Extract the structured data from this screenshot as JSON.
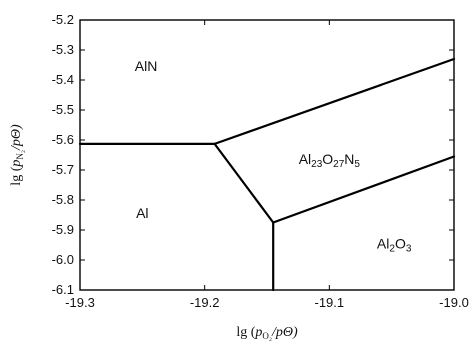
{
  "chart_data": {
    "type": "line",
    "title": "",
    "xlabel": {
      "prefix": "lg (",
      "p": "p",
      "sub": "O₂",
      "suffix": "/pΘ)"
    },
    "ylabel": {
      "prefix": "lg (",
      "p": "p",
      "sub": "N₂",
      "suffix": "/pΘ)"
    },
    "xlim": [
      -19.3,
      -19.0
    ],
    "ylim": [
      -6.1,
      -5.2
    ],
    "xticks": [
      -19.3,
      -19.2,
      -19.1,
      -19.0
    ],
    "xtick_labels": [
      "-19.3",
      "-19.2",
      "-19.1",
      "-19.0"
    ],
    "yticks": [
      -5.2,
      -5.3,
      -5.4,
      -5.5,
      -5.6,
      -5.7,
      -5.8,
      -5.9,
      -6.0,
      -6.1
    ],
    "ytick_labels": [
      "-5.2",
      "-5.3",
      "-5.4",
      "-5.5",
      "-5.6",
      "-5.7",
      "-5.8",
      "-5.9",
      "-6.0",
      "-6.1"
    ],
    "grid": false,
    "boundaries": [
      {
        "name": "Al-AlN",
        "points": [
          [
            -19.3,
            -5.613
          ],
          [
            -19.192,
            -5.613
          ]
        ]
      },
      {
        "name": "Al-Al23O27N5",
        "points": [
          [
            -19.192,
            -5.613
          ],
          [
            -19.145,
            -5.875
          ]
        ]
      },
      {
        "name": "AlN-Al23O27N5",
        "points": [
          [
            -19.192,
            -5.613
          ],
          [
            -19.0,
            -5.33
          ]
        ]
      },
      {
        "name": "Al-Al2O3",
        "points": [
          [
            -19.145,
            -5.875
          ],
          [
            -19.145,
            -6.1
          ]
        ]
      },
      {
        "name": "Al23O27N5-Al2O3",
        "points": [
          [
            -19.145,
            -5.875
          ],
          [
            -19.0,
            -5.655
          ]
        ]
      }
    ],
    "regions": [
      {
        "name": "AlN",
        "parts": [
          {
            "t": "AlN",
            "sub": false
          }
        ],
        "x": -19.247,
        "y": -5.37
      },
      {
        "name": "Al23O27N5",
        "parts": [
          {
            "t": "Al",
            "sub": false
          },
          {
            "t": "23",
            "sub": true
          },
          {
            "t": "O",
            "sub": false
          },
          {
            "t": "27",
            "sub": true
          },
          {
            "t": "N",
            "sub": false
          },
          {
            "t": "5",
            "sub": true
          }
        ],
        "x": -19.1,
        "y": -5.68
      },
      {
        "name": "Al",
        "parts": [
          {
            "t": "Al",
            "sub": false
          }
        ],
        "x": -19.25,
        "y": -5.86
      },
      {
        "name": "Al2O3",
        "parts": [
          {
            "t": "Al",
            "sub": false
          },
          {
            "t": "2",
            "sub": true
          },
          {
            "t": "O",
            "sub": false
          },
          {
            "t": "3",
            "sub": true
          }
        ],
        "x": -19.048,
        "y": -5.962
      }
    ]
  }
}
